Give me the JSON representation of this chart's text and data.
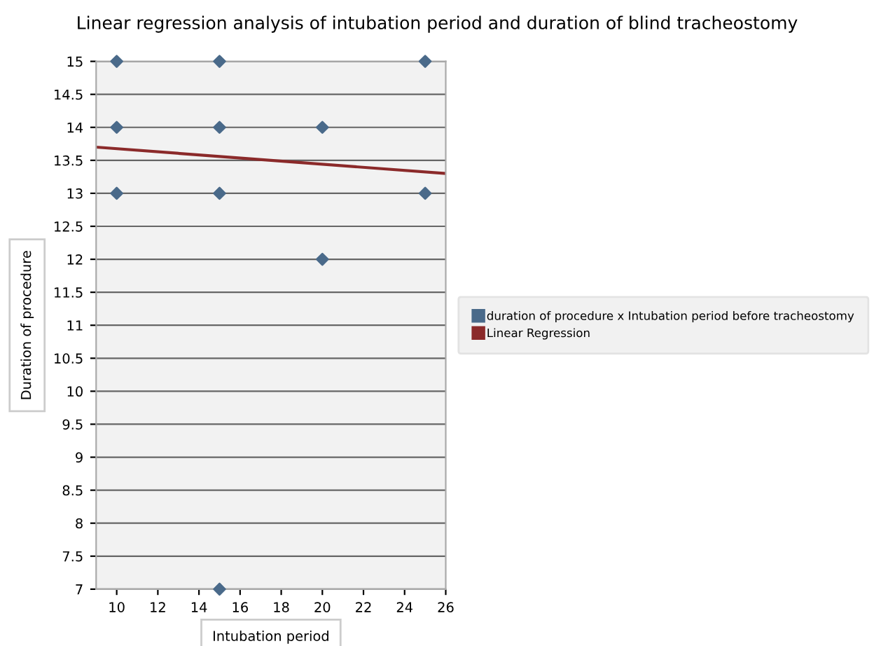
{
  "chart_data": {
    "type": "scatter",
    "title": "Linear regression analysis of intubation period and duration of blind tracheostomy",
    "xlabel": "Intubation period",
    "ylabel": "Duration of procedure",
    "series": [
      {
        "name": "duration of procedure x Intubation period before tracheostomy",
        "color": "#4a6a8a",
        "marker": "diamond",
        "x": [
          10,
          15,
          25,
          10,
          15,
          20,
          10,
          15,
          25,
          20,
          15
        ],
        "values": [
          15,
          15,
          15,
          14,
          14,
          14,
          13,
          13,
          13,
          12,
          7
        ]
      },
      {
        "name": "Linear Regression",
        "type": "line",
        "color": "#8b2a2a",
        "marker": "none",
        "line_style": "solid",
        "x": [
          9,
          26
        ],
        "values": [
          13.7,
          13.3
        ]
      }
    ],
    "xlim": [
      9,
      26
    ],
    "xticks": [
      10,
      12,
      14,
      16,
      18,
      20,
      22,
      24,
      26
    ],
    "ylim": [
      7,
      15
    ],
    "yticks": [
      7,
      7.5,
      8,
      8.5,
      9,
      9.5,
      10,
      10.5,
      11,
      11.5,
      12,
      12.5,
      13,
      13.5,
      14,
      14.5,
      15
    ],
    "grid": "y",
    "legend": "right"
  }
}
